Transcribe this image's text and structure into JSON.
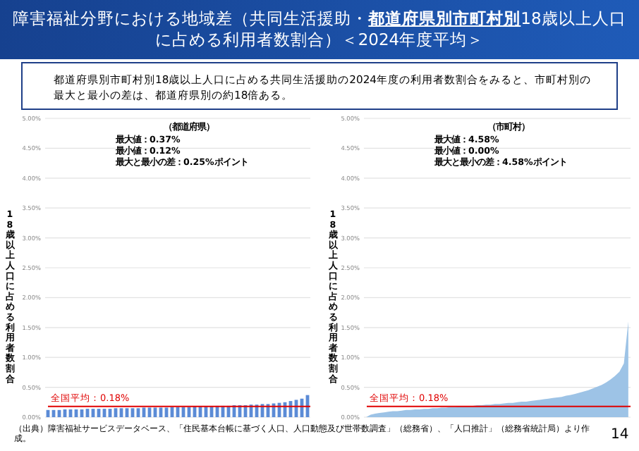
{
  "chart_data": [
    {
      "type": "other",
      "title": "障害福祉分野における地域差（共同生活援助・**都道府県別市町村別**18歳以上人口に占める利用者数割合）＜2024年度平均＞",
      "annotations": [
        "都道府県別市町村別18歳以上人口に占める共同生活援助の2024年度の利用者数割合をみると、市町村別の最大と最小の差は、都道府県別の約18倍ある。",
        "（出典）障害福祉サービスデータベース、「住民基本台帳に基づく人口、人口動態及び世帯数調査」（総務省）、「人口推計」（総務省統計局）より作成。",
        "14"
      ]
    },
    {
      "type": "bar",
      "title": "（都道府県）",
      "ylabel": "18歳以上人口に占める利用者数割合",
      "color": "#5b8bd6",
      "annotations": [
        "最大値：0.37%",
        "最小値：0.12%",
        "最大と最小の差：0.25%ポイント"
      ],
      "categories": [
        null,
        null,
        null,
        null,
        null,
        null,
        null,
        null,
        null,
        null,
        null,
        null,
        null,
        null,
        null,
        null,
        null,
        null,
        null,
        null,
        null,
        null,
        null,
        null,
        null,
        null,
        null,
        null,
        null,
        null,
        null,
        null,
        null,
        null,
        null,
        null,
        null,
        null,
        null,
        null,
        null,
        null,
        null,
        null,
        null,
        null,
        null
      ],
      "values": [
        0.12,
        0.12,
        0.12,
        0.13,
        0.13,
        0.13,
        0.13,
        0.14,
        0.14,
        0.14,
        0.14,
        0.14,
        0.15,
        0.15,
        0.15,
        0.15,
        0.15,
        0.16,
        0.16,
        0.16,
        0.16,
        0.16,
        0.17,
        0.17,
        0.17,
        0.17,
        0.18,
        0.18,
        0.18,
        0.18,
        0.19,
        0.19,
        0.19,
        0.2,
        0.2,
        0.2,
        0.21,
        0.21,
        0.22,
        0.22,
        0.23,
        0.24,
        0.25,
        0.27,
        0.29,
        0.31,
        0.37
      ],
      "ylim": [
        0,
        5
      ],
      "yticks": [
        {
          "value": 0,
          "label": "0.00%"
        },
        {
          "value": 0.5,
          "label": "0.50%"
        },
        {
          "value": 1,
          "label": "1.00%"
        },
        {
          "value": 1.5,
          "label": "1.50%"
        },
        {
          "value": 2,
          "label": "2.00%"
        },
        {
          "value": 2.5,
          "label": "2.50%"
        },
        {
          "value": 3,
          "label": "3.00%"
        },
        {
          "value": 3.5,
          "label": "3.50%"
        },
        {
          "value": 4,
          "label": "4.00%"
        },
        {
          "value": 4.5,
          "label": "4.50%"
        },
        {
          "value": 5,
          "label": "5.00%"
        }
      ],
      "grid": "y",
      "ref_lines": [
        {
          "axis": "y",
          "value": 0.18,
          "label": "全国平均：0.18%",
          "color": "#e00000"
        }
      ]
    },
    {
      "type": "area",
      "title": "（市町村）",
      "ylabel": "18歳以上人口に占める利用者数割合",
      "color": "#9dc3e6",
      "annotations": [
        "最大値：4.58%",
        "最小値：0.00%",
        "最大と最小の差：4.58%ポイント"
      ],
      "categories": [
        null,
        null,
        null,
        null,
        null,
        null,
        null,
        null,
        null,
        null,
        null,
        null,
        null,
        null,
        null,
        null,
        null,
        null,
        null,
        null,
        null,
        null,
        null,
        null,
        null,
        null,
        null,
        null,
        null,
        null,
        null,
        null,
        null,
        null,
        null,
        null,
        null,
        null,
        null,
        null,
        null,
        null,
        null,
        null,
        null,
        null,
        null,
        null,
        null,
        null,
        null,
        null,
        null,
        null,
        null,
        null,
        null,
        null,
        null,
        null
      ],
      "values": [
        0,
        0.04,
        0.06,
        0.07,
        0.08,
        0.09,
        0.1,
        0.1,
        0.11,
        0.12,
        0.12,
        0.13,
        0.13,
        0.14,
        0.14,
        0.15,
        0.15,
        0.16,
        0.16,
        0.17,
        0.17,
        0.18,
        0.18,
        0.19,
        0.19,
        0.2,
        0.2,
        0.21,
        0.21,
        0.22,
        0.22,
        0.23,
        0.24,
        0.24,
        0.25,
        0.26,
        0.26,
        0.27,
        0.28,
        0.29,
        0.3,
        0.31,
        0.32,
        0.33,
        0.34,
        0.36,
        0.37,
        0.39,
        0.41,
        0.43,
        0.45,
        0.48,
        0.51,
        0.54,
        0.58,
        0.63,
        0.69,
        0.76,
        0.9,
        1.6
      ],
      "ylim": [
        0,
        5
      ],
      "yticks": [
        {
          "value": 0,
          "label": "0.00%"
        },
        {
          "value": 0.5,
          "label": "0.50%"
        },
        {
          "value": 1,
          "label": "1.00%"
        },
        {
          "value": 1.5,
          "label": "1.50%"
        },
        {
          "value": 2,
          "label": "2.00%"
        },
        {
          "value": 2.5,
          "label": "2.50%"
        },
        {
          "value": 3,
          "label": "3.00%"
        },
        {
          "value": 3.5,
          "label": "3.50%"
        },
        {
          "value": 4,
          "label": "4.00%"
        },
        {
          "value": 4.5,
          "label": "4.50%"
        },
        {
          "value": 5,
          "label": "5.00%"
        }
      ],
      "grid": "y",
      "ref_lines": [
        {
          "axis": "y",
          "value": 0.18,
          "label": "全国平均：0.18%",
          "color": "#e00000"
        }
      ]
    }
  ]
}
